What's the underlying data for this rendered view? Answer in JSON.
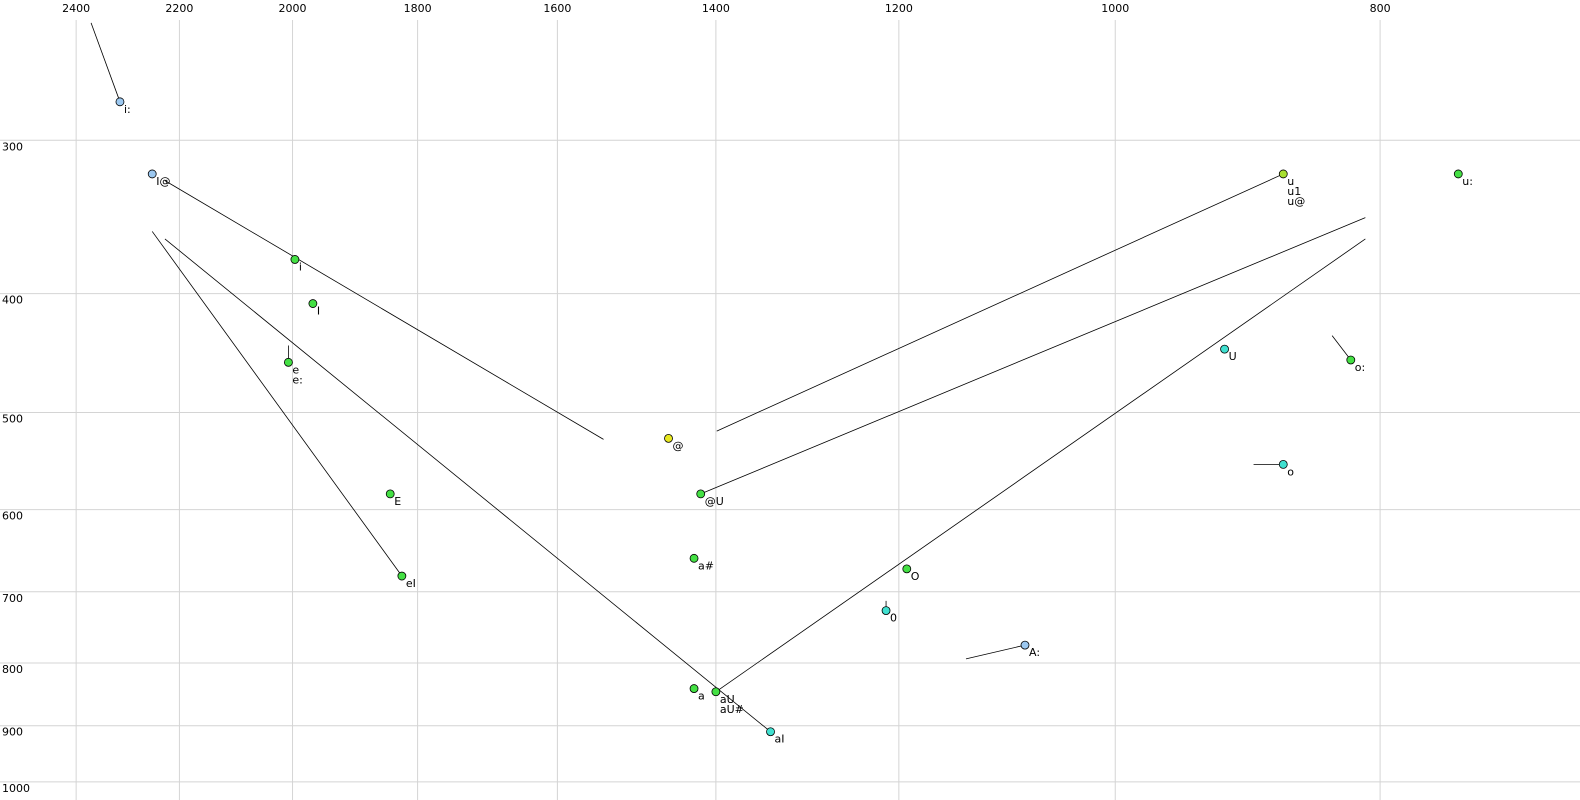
{
  "chart_data": {
    "type": "scatter",
    "x_log": true,
    "y_log": true,
    "grid": true,
    "xlim": [
      2559,
      676
    ],
    "ylim": [
      228,
      1023
    ],
    "xticks": [
      2400,
      2200,
      2000,
      1800,
      1600,
      1400,
      1200,
      1000,
      800
    ],
    "yticks": [
      300,
      400,
      500,
      600,
      700,
      800,
      900,
      1000
    ],
    "points": [
      {
        "labels": [
          "i:"
        ],
        "x": 2313,
        "y": 276,
        "color": "#9cc8f0"
      },
      {
        "labels": [
          "I@"
        ],
        "x": 2251,
        "y": 316,
        "color": "#9cc8f0"
      },
      {
        "labels": [
          "i"
        ],
        "x": 1996,
        "y": 371,
        "color": "#44e044"
      },
      {
        "labels": [
          "I"
        ],
        "x": 1966,
        "y": 403,
        "color": "#44e044"
      },
      {
        "labels": [
          "e",
          "e:"
        ],
        "x": 2007,
        "y": 450,
        "color": "#44e044"
      },
      {
        "labels": [
          "E"
        ],
        "x": 1842,
        "y": 576,
        "color": "#44e044"
      },
      {
        "labels": [
          "eI"
        ],
        "x": 1824,
        "y": 672,
        "color": "#44e044"
      },
      {
        "labels": [
          "@"
        ],
        "x": 1457,
        "y": 519,
        "color": "#e8e820"
      },
      {
        "labels": [
          "@U"
        ],
        "x": 1418,
        "y": 576,
        "color": "#44e044"
      },
      {
        "labels": [
          "a#"
        ],
        "x": 1426,
        "y": 650,
        "color": "#44e044"
      },
      {
        "labels": [
          "a"
        ],
        "x": 1426,
        "y": 830,
        "color": "#44e044"
      },
      {
        "labels": [
          "aU",
          "aU#"
        ],
        "x": 1400,
        "y": 835,
        "color": "#44e044"
      },
      {
        "labels": [
          "aI"
        ],
        "x": 1337,
        "y": 900,
        "color": "#40e0d0"
      },
      {
        "labels": [
          "O"
        ],
        "x": 1192,
        "y": 663,
        "color": "#44e044"
      },
      {
        "labels": [
          "0"
        ],
        "x": 1213,
        "y": 717,
        "color": "#40e0d0"
      },
      {
        "labels": [
          "A:"
        ],
        "x": 1079,
        "y": 765,
        "color": "#9cc8f0"
      },
      {
        "labels": [
          "U"
        ],
        "x": 912,
        "y": 439,
        "color": "#40e0d0"
      },
      {
        "labels": [
          "u",
          "u1",
          "u@"
        ],
        "x": 868,
        "y": 316,
        "color": "#a8e030"
      },
      {
        "labels": [
          "o"
        ],
        "x": 868,
        "y": 545,
        "color": "#40e0d0"
      },
      {
        "labels": [
          "o:"
        ],
        "x": 820,
        "y": 448,
        "color": "#44e044"
      },
      {
        "labels": [
          "u:"
        ],
        "x": 749,
        "y": 316,
        "color": "#44e044"
      }
    ],
    "trajectories": [
      {
        "x": [
          2370,
          2313
        ],
        "y": [
          238,
          276
        ]
      },
      {
        "x": [
          2227,
          1539
        ],
        "y": [
          320,
          520
        ]
      },
      {
        "x": [
          2251,
          1824
        ],
        "y": [
          352,
          672
        ]
      },
      {
        "x": [
          2227,
          1337
        ],
        "y": [
          357,
          900
        ]
      },
      {
        "x": [
          2007,
          2007
        ],
        "y": [
          436,
          450
        ]
      },
      {
        "x": [
          1400,
          810
        ],
        "y": [
          835,
          357
        ]
      },
      {
        "x": [
          1418,
          810
        ],
        "y": [
          576,
          343
        ]
      },
      {
        "x": [
          1399,
          868
        ],
        "y": [
          512,
          316
        ]
      },
      {
        "x": [
          833,
          820
        ],
        "y": [
          428,
          448
        ]
      },
      {
        "x": [
          890,
          868
        ],
        "y": [
          545,
          545
        ]
      },
      {
        "x": [
          1213,
          1213
        ],
        "y": [
          704,
          717
        ]
      },
      {
        "x": [
          1134,
          1079
        ],
        "y": [
          785,
          765
        ]
      }
    ]
  }
}
